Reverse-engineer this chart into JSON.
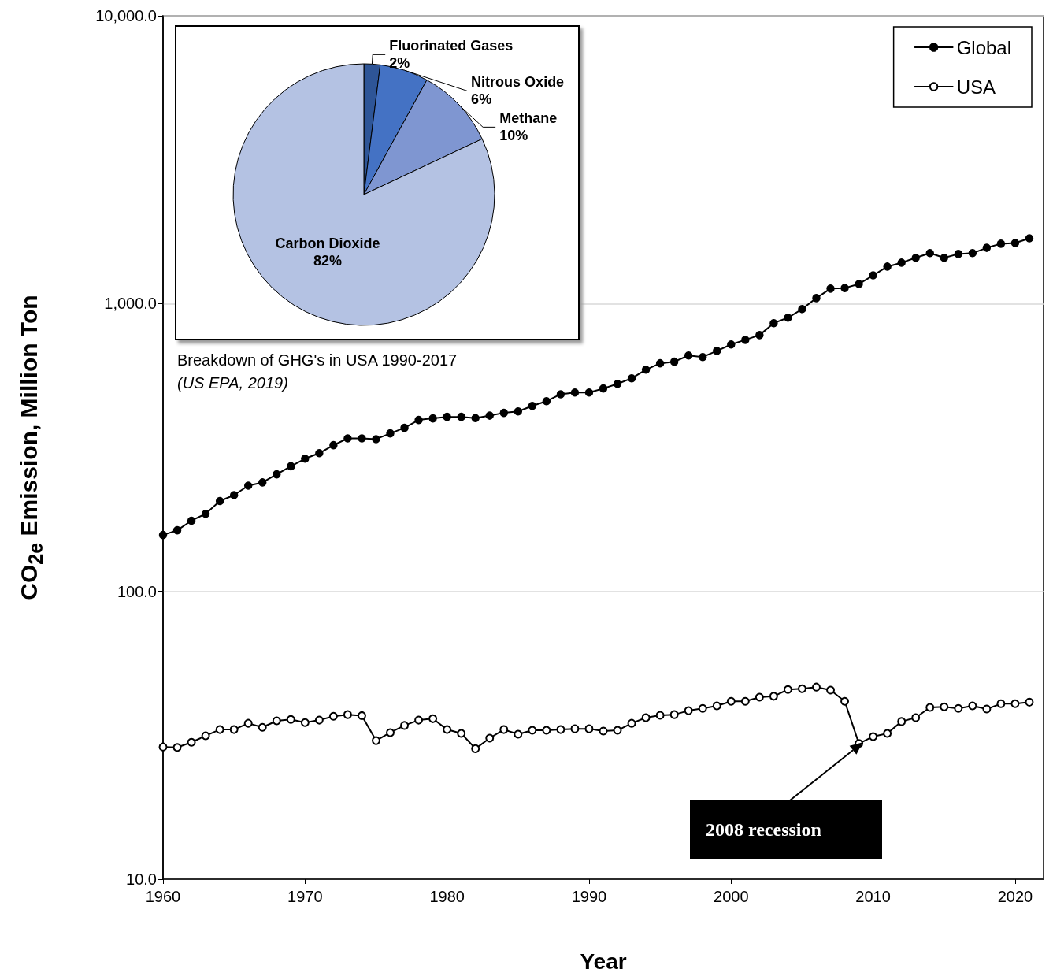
{
  "chart_data": [
    {
      "type": "line",
      "xlabel": "Year",
      "ylabel": "CO$_{2e}$ Emission, Million Ton",
      "x": [
        1960,
        1961,
        1962,
        1963,
        1964,
        1965,
        1966,
        1967,
        1968,
        1969,
        1970,
        1971,
        1972,
        1973,
        1974,
        1975,
        1976,
        1977,
        1978,
        1979,
        1980,
        1981,
        1982,
        1983,
        1984,
        1985,
        1986,
        1987,
        1988,
        1989,
        1990,
        1991,
        1992,
        1993,
        1994,
        1995,
        1996,
        1997,
        1998,
        1999,
        2000,
        2001,
        2002,
        2003,
        2004,
        2005,
        2006,
        2007,
        2008,
        2009,
        2010,
        2011,
        2012,
        2013,
        2014,
        2015,
        2016,
        2017,
        2018,
        2019,
        2020,
        2021
      ],
      "series": [
        {
          "name": "Global",
          "color": "#000000",
          "marker": "circle",
          "values": [
            157,
            163,
            176,
            186,
            206,
            216,
            233,
            239,
            255,
            272,
            289,
            302,
            322,
            340,
            340,
            338,
            354,
            370,
            394,
            399,
            404,
            404,
            400,
            408,
            417,
            422,
            441,
            458,
            484,
            491,
            491,
            507,
            526,
            550,
            589,
            620,
            628,
            660,
            652,
            685,
            721,
            748,
            777,
            855,
            893,
            957,
            1045,
            1127,
            1132,
            1170,
            1253,
            1344,
            1387,
            1442,
            1497,
            1442,
            1487,
            1497,
            1562,
            1614,
            1623,
            1686
          ]
        },
        {
          "name": "USA",
          "color": "#000000",
          "marker": "open circle",
          "values": [
            28.8,
            28.7,
            29.9,
            31.5,
            33.1,
            33.1,
            34.8,
            33.7,
            35.5,
            35.9,
            35.0,
            35.7,
            36.8,
            37.3,
            37.0,
            30.3,
            32.3,
            34.2,
            35.7,
            36.1,
            33.1,
            32.1,
            28.4,
            30.9,
            33.1,
            31.9,
            32.9,
            32.9,
            33.1,
            33.3,
            33.3,
            32.7,
            32.9,
            34.8,
            36.4,
            37.1,
            37.3,
            38.5,
            39.2,
            40.0,
            41.5,
            41.5,
            42.9,
            43.2,
            45.6,
            45.9,
            46.5,
            45.4,
            41.5,
            29.6,
            31.3,
            32.1,
            35.3,
            36.4,
            39.5,
            39.7,
            39.2,
            40.0,
            39.0,
            40.7,
            40.7,
            41.2
          ]
        }
      ],
      "xlim": [
        1960,
        2022
      ],
      "xticks": [
        1960,
        1970,
        1980,
        1990,
        2000,
        2010,
        2020
      ],
      "ylim": [
        10,
        10000
      ],
      "yticks": [
        {
          "value": 10,
          "label": "10.0"
        },
        {
          "value": 100,
          "label": "100.0"
        },
        {
          "value": 1000,
          "label": "1,000.0"
        },
        {
          "value": 10000,
          "label": "10,000.0"
        }
      ],
      "log": "y",
      "grid": "y",
      "legend": "top right",
      "line_style": "solid",
      "annotations": [
        "2008 recession"
      ]
    },
    {
      "type": "pie",
      "title": "Breakdown of GHG's in USA 1990-2017",
      "annotations": [
        "(US EPA, 2019)"
      ],
      "categories": [
        "Fluorinated Gases",
        "Nitrous Oxide",
        "Methane",
        "Carbon Dioxide"
      ],
      "values": [
        2,
        6,
        10,
        82
      ],
      "value_labels": [
        "2%",
        "6%",
        "10%",
        "82%"
      ],
      "colors": [
        "#2e5597",
        "#4472c4",
        "#7f96d1",
        "#b4c2e3"
      ]
    }
  ]
}
